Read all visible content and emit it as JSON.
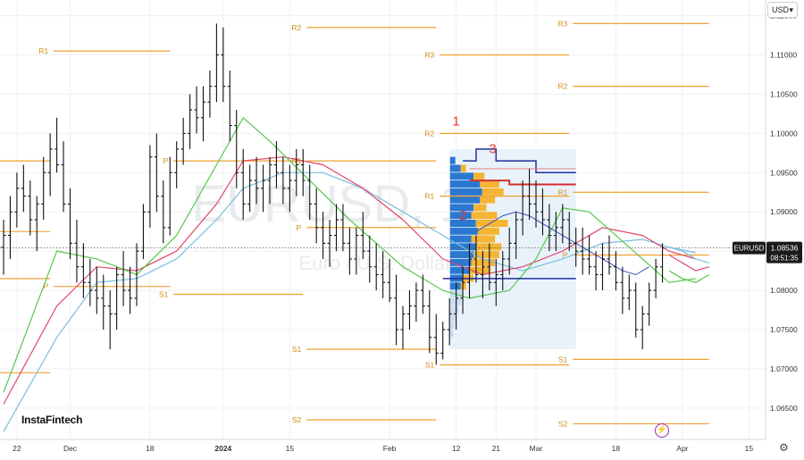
{
  "currency_select": {
    "value": "USD"
  },
  "logo_text": "InstaFintech",
  "watermark": {
    "symbol": "EURUSD, 1D",
    "description": "Euro / U.S. Dollar"
  },
  "price_badge": {
    "symbol": "EURUSD",
    "price": "1.08536",
    "countdown": "08:51:35"
  },
  "colors": {
    "pivot": "#f0a030",
    "candle": "#111111",
    "ma_green": "#55c84a",
    "ma_red": "#e2476a",
    "ma_blue": "#7bbde0",
    "volume_profile_bg": "#e9f2fb",
    "vp_blue": "#2a78d0",
    "vp_orange": "#f5b432",
    "annotation_red": "#e53935",
    "navy_line": "#1f2f9e"
  },
  "chart_data": {
    "type": "ohlc",
    "x_tick_labels": [
      "22",
      "Dec",
      "18",
      "2024",
      "15",
      "Feb",
      "12",
      "21",
      "Mar",
      "18",
      "Apr",
      "15"
    ],
    "y_ticks": [
      1.065,
      1.07,
      1.075,
      1.08,
      1.085,
      1.09,
      1.095,
      1.1,
      1.105,
      1.11,
      1.115
    ],
    "y_tick_labels": [
      "1.06500",
      "1.07000",
      "1.07500",
      "1.08000",
      "1.08500",
      "1.09000",
      "1.09500",
      "1.10000",
      "1.10500",
      "1.11000",
      "1.11500"
    ],
    "ylim": [
      1.061,
      1.117
    ],
    "bars_per_x_tick": [
      2,
      10,
      22,
      33,
      43,
      58,
      68,
      74,
      80,
      92,
      102,
      112
    ],
    "total_bars": 106,
    "ohlc": [
      [
        1.0855,
        1.089,
        1.082,
        1.087
      ],
      [
        1.087,
        1.092,
        1.084,
        1.09
      ],
      [
        1.09,
        1.095,
        1.088,
        1.093
      ],
      [
        1.093,
        1.096,
        1.09,
        1.092
      ],
      [
        1.092,
        1.094,
        1.087,
        1.089
      ],
      [
        1.089,
        1.092,
        1.085,
        1.091
      ],
      [
        1.091,
        1.097,
        1.089,
        1.095
      ],
      [
        1.095,
        1.1,
        1.092,
        1.098
      ],
      [
        1.098,
        1.102,
        1.095,
        1.096
      ],
      [
        1.096,
        1.099,
        1.09,
        1.091
      ],
      [
        1.091,
        1.093,
        1.084,
        1.086
      ],
      [
        1.086,
        1.089,
        1.081,
        1.083
      ],
      [
        1.083,
        1.086,
        1.079,
        1.081
      ],
      [
        1.081,
        1.084,
        1.078,
        1.08
      ],
      [
        1.08,
        1.083,
        1.077,
        1.079
      ],
      [
        1.079,
        1.082,
        1.075,
        1.078
      ],
      [
        1.078,
        1.08,
        1.0725,
        1.077
      ],
      [
        1.077,
        1.083,
        1.075,
        1.082
      ],
      [
        1.082,
        1.085,
        1.078,
        1.08
      ],
      [
        1.08,
        1.083,
        1.077,
        1.079
      ],
      [
        1.079,
        1.086,
        1.078,
        1.085
      ],
      [
        1.085,
        1.091,
        1.084,
        1.09
      ],
      [
        1.09,
        1.0985,
        1.088,
        1.097
      ],
      [
        1.097,
        1.1,
        1.09,
        1.092
      ],
      [
        1.092,
        1.094,
        1.086,
        1.088
      ],
      [
        1.088,
        1.097,
        1.087,
        1.095
      ],
      [
        1.095,
        1.099,
        1.093,
        1.098
      ],
      [
        1.098,
        1.102,
        1.096,
        1.1
      ],
      [
        1.1,
        1.105,
        1.098,
        1.103
      ],
      [
        1.103,
        1.106,
        1.1,
        1.102
      ],
      [
        1.102,
        1.106,
        1.099,
        1.104
      ],
      [
        1.104,
        1.108,
        1.102,
        1.106
      ],
      [
        1.106,
        1.114,
        1.104,
        1.11
      ],
      [
        1.11,
        1.1135,
        1.104,
        1.106
      ],
      [
        1.106,
        1.108,
        1.099,
        1.101
      ],
      [
        1.101,
        1.103,
        1.093,
        1.095
      ],
      [
        1.095,
        1.098,
        1.089,
        1.091
      ],
      [
        1.091,
        1.096,
        1.09,
        1.094
      ],
      [
        1.094,
        1.097,
        1.091,
        1.093
      ],
      [
        1.093,
        1.096,
        1.09,
        1.094
      ],
      [
        1.094,
        1.097,
        1.091,
        1.096
      ],
      [
        1.096,
        1.099,
        1.093,
        1.095
      ],
      [
        1.095,
        1.097,
        1.091,
        1.093
      ],
      [
        1.093,
        1.096,
        1.09,
        1.094
      ],
      [
        1.094,
        1.098,
        1.092,
        1.096
      ],
      [
        1.096,
        1.098,
        1.092,
        1.094
      ],
      [
        1.094,
        1.096,
        1.089,
        1.091
      ],
      [
        1.091,
        1.093,
        1.086,
        1.088
      ],
      [
        1.088,
        1.09,
        1.084,
        1.086
      ],
      [
        1.086,
        1.089,
        1.083,
        1.087
      ],
      [
        1.087,
        1.091,
        1.085,
        1.089
      ],
      [
        1.089,
        1.091,
        1.085,
        1.086
      ],
      [
        1.086,
        1.088,
        1.082,
        1.084
      ],
      [
        1.084,
        1.088,
        1.082,
        1.087
      ],
      [
        1.087,
        1.09,
        1.084,
        1.085
      ],
      [
        1.085,
        1.087,
        1.081,
        1.083
      ],
      [
        1.083,
        1.086,
        1.08,
        1.082
      ],
      [
        1.082,
        1.085,
        1.079,
        1.081
      ],
      [
        1.081,
        1.084,
        1.0785,
        1.079
      ],
      [
        1.079,
        1.082,
        1.073,
        1.075
      ],
      [
        1.075,
        1.078,
        1.0725,
        1.077
      ],
      [
        1.077,
        1.08,
        1.075,
        1.078
      ],
      [
        1.078,
        1.081,
        1.076,
        1.08
      ],
      [
        1.08,
        1.082,
        1.077,
        1.078
      ],
      [
        1.078,
        1.08,
        1.072,
        1.074
      ],
      [
        1.074,
        1.077,
        1.0705,
        1.072
      ],
      [
        1.072,
        1.076,
        1.0712,
        1.075
      ],
      [
        1.075,
        1.079,
        1.073,
        1.077
      ],
      [
        1.077,
        1.081,
        1.075,
        1.079
      ],
      [
        1.079,
        1.083,
        1.077,
        1.081
      ],
      [
        1.081,
        1.086,
        1.079,
        1.084
      ],
      [
        1.084,
        1.087,
        1.081,
        1.082
      ],
      [
        1.082,
        1.085,
        1.079,
        1.083
      ],
      [
        1.083,
        1.086,
        1.08,
        1.081
      ],
      [
        1.081,
        1.084,
        1.078,
        1.082
      ],
      [
        1.082,
        1.085,
        1.08,
        1.084
      ],
      [
        1.084,
        1.088,
        1.082,
        1.086
      ],
      [
        1.086,
        1.09,
        1.084,
        1.089
      ],
      [
        1.089,
        1.094,
        1.087,
        1.092
      ],
      [
        1.092,
        1.0955,
        1.089,
        1.091
      ],
      [
        1.091,
        1.094,
        1.088,
        1.09
      ],
      [
        1.09,
        1.093,
        1.087,
        1.089
      ],
      [
        1.089,
        1.091,
        1.085,
        1.087
      ],
      [
        1.087,
        1.09,
        1.085,
        1.088
      ],
      [
        1.088,
        1.091,
        1.086,
        1.089
      ],
      [
        1.089,
        1.09,
        1.085,
        1.086
      ],
      [
        1.086,
        1.088,
        1.083,
        1.085
      ],
      [
        1.085,
        1.088,
        1.082,
        1.084
      ],
      [
        1.084,
        1.087,
        1.082,
        1.083
      ],
      [
        1.083,
        1.085,
        1.08,
        1.082
      ],
      [
        1.082,
        1.086,
        1.08,
        1.084
      ],
      [
        1.084,
        1.087,
        1.082,
        1.083
      ],
      [
        1.083,
        1.085,
        1.08,
        1.081
      ],
      [
        1.081,
        1.083,
        1.077,
        1.079
      ],
      [
        1.079,
        1.082,
        1.0775,
        1.08
      ],
      [
        1.08,
        1.081,
        1.074,
        1.075
      ],
      [
        1.075,
        1.078,
        1.0725,
        1.077
      ],
      [
        1.077,
        1.081,
        1.0755,
        1.08
      ],
      [
        1.08,
        1.084,
        1.079,
        1.083
      ],
      [
        1.083,
        1.086,
        1.081,
        1.0854
      ]
    ],
    "ma_green": [
      [
        0,
        1.067
      ],
      [
        8,
        1.085
      ],
      [
        14,
        1.084
      ],
      [
        20,
        1.082
      ],
      [
        26,
        1.087
      ],
      [
        32,
        1.096
      ],
      [
        36,
        1.102
      ],
      [
        40,
        1.099
      ],
      [
        46,
        1.094
      ],
      [
        52,
        1.089
      ],
      [
        60,
        1.083
      ],
      [
        66,
        1.08
      ],
      [
        70,
        1.079
      ],
      [
        76,
        1.08
      ],
      [
        80,
        1.084
      ],
      [
        84,
        1.0905
      ],
      [
        88,
        1.09
      ],
      [
        92,
        1.087
      ],
      [
        96,
        1.084
      ],
      [
        100,
        1.081
      ],
      [
        104,
        1.0815
      ]
    ],
    "ma_red": [
      [
        0,
        1.0655
      ],
      [
        8,
        1.078
      ],
      [
        14,
        1.083
      ],
      [
        20,
        1.0825
      ],
      [
        26,
        1.085
      ],
      [
        32,
        1.091
      ],
      [
        36,
        1.0965
      ],
      [
        42,
        1.097
      ],
      [
        48,
        1.096
      ],
      [
        54,
        1.093
      ],
      [
        60,
        1.089
      ],
      [
        66,
        1.084
      ],
      [
        72,
        1.082
      ],
      [
        78,
        1.083
      ],
      [
        84,
        1.085
      ],
      [
        90,
        1.088
      ],
      [
        96,
        1.087
      ],
      [
        100,
        1.085
      ],
      [
        104,
        1.084
      ]
    ],
    "ma_blue": [
      [
        0,
        1.062
      ],
      [
        8,
        1.074
      ],
      [
        14,
        1.081
      ],
      [
        20,
        1.0815
      ],
      [
        26,
        1.084
      ],
      [
        32,
        1.089
      ],
      [
        36,
        1.093
      ],
      [
        42,
        1.095
      ],
      [
        48,
        1.095
      ],
      [
        54,
        1.093
      ],
      [
        60,
        1.09
      ],
      [
        66,
        1.087
      ],
      [
        72,
        1.084
      ],
      [
        78,
        1.0825
      ],
      [
        84,
        1.084
      ],
      [
        90,
        1.086
      ],
      [
        96,
        1.0865
      ],
      [
        100,
        1.0855
      ],
      [
        104,
        1.0848
      ]
    ],
    "pivot_lines": [
      {
        "label": "R1",
        "y": 1.1105,
        "x0": 7,
        "x1": 25
      },
      {
        "label": "P",
        "y": 1.0805,
        "x0": 7,
        "x1": 25
      },
      {
        "label": "S1",
        "y": 1.0795,
        "x0": 25,
        "x1": 45
      },
      {
        "label": "P",
        "y": 1.0965,
        "x0": 25,
        "x1": 45
      },
      {
        "label": "R2",
        "y": 1.1135,
        "x0": 45,
        "x1": 65
      },
      {
        "label": "R1",
        "y": 1.0965,
        "x0": 45,
        "x1": 65
      },
      {
        "label": "P",
        "y": 1.088,
        "x0": 45,
        "x1": 65
      },
      {
        "label": "S1",
        "y": 1.0725,
        "x0": 45,
        "x1": 65
      },
      {
        "label": "S2",
        "y": 1.0635,
        "x0": 45,
        "x1": 65
      },
      {
        "label": "R3",
        "y": 1.11,
        "x0": 65,
        "x1": 85
      },
      {
        "label": "R2",
        "y": 1.1,
        "x0": 65,
        "x1": 85
      },
      {
        "label": "R1",
        "y": 1.092,
        "x0": 65,
        "x1": 85
      },
      {
        "label": "S1",
        "y": 1.0705,
        "x0": 65,
        "x1": 85
      },
      {
        "label": "R3",
        "y": 1.114,
        "x0": 85,
        "x1": 106
      },
      {
        "label": "R2",
        "y": 1.106,
        "x0": 85,
        "x1": 106
      },
      {
        "label": "R1",
        "y": 1.0925,
        "x0": 85,
        "x1": 106
      },
      {
        "label": "P",
        "y": 1.0845,
        "x0": 85,
        "x1": 106
      },
      {
        "label": "S1",
        "y": 1.0712,
        "x0": 85,
        "x1": 106
      },
      {
        "label": "S2",
        "y": 1.063,
        "x0": 85,
        "x1": 106
      },
      {
        "label": "",
        "y": 1.0875,
        "x0": 0,
        "x1": 7
      },
      {
        "label": "",
        "y": 1.0965,
        "x0": 0,
        "x1": 7
      },
      {
        "label": "",
        "y": 1.0815,
        "x0": 0,
        "x1": 7
      },
      {
        "label": "",
        "y": 1.0695,
        "x0": 0,
        "x1": 7
      }
    ],
    "annotations": [
      {
        "text": "1",
        "x": 68,
        "y": 1.101
      },
      {
        "text": "2",
        "x": 69,
        "y": 1.089
      },
      {
        "text": "3",
        "x": 73.5,
        "y": 1.0975
      }
    ],
    "volume_profile": {
      "x_range": [
        66,
        86
      ],
      "y_range": [
        1.0725,
        1.098
      ],
      "rows": [
        [
          1.0965,
          0.05,
          0
        ],
        [
          1.0955,
          0.1,
          0.05
        ],
        [
          1.0945,
          0.22,
          0.1
        ],
        [
          1.0935,
          0.28,
          0.18
        ],
        [
          1.0925,
          0.3,
          0.2
        ],
        [
          1.0915,
          0.28,
          0.14
        ],
        [
          1.0905,
          0.22,
          0.12
        ],
        [
          1.0895,
          0.2,
          0.24
        ],
        [
          1.0885,
          0.24,
          0.3
        ],
        [
          1.0875,
          0.26,
          0.2
        ],
        [
          1.0865,
          0.2,
          0.22
        ],
        [
          1.0855,
          0.24,
          0.24
        ],
        [
          1.0845,
          0.22,
          0.24
        ],
        [
          1.0835,
          0.2,
          0.22
        ],
        [
          1.0825,
          0.18,
          0.2
        ],
        [
          1.0815,
          0.12,
          0.1
        ],
        [
          1.0805,
          0.1,
          0.05
        ],
        [
          1.0795,
          0.12,
          0
        ],
        [
          1.0785,
          0.1,
          0
        ],
        [
          1.0775,
          0.08,
          0
        ],
        [
          1.0765,
          0.05,
          0
        ],
        [
          1.0755,
          0.04,
          0
        ],
        [
          1.0745,
          0.03,
          0
        ]
      ]
    },
    "navy_steps": [
      [
        69,
        1.0965
      ],
      [
        71,
        1.0965
      ],
      [
        71,
        1.098
      ],
      [
        74,
        1.098
      ],
      [
        74,
        1.0965
      ],
      [
        80,
        1.0965
      ],
      [
        80,
        1.095
      ],
      [
        86,
        1.095
      ]
    ],
    "navy_bottom": [
      [
        66,
        1.0815
      ],
      [
        86,
        1.0815
      ]
    ],
    "red_steps": [
      [
        70,
        1.094
      ],
      [
        76,
        1.094
      ],
      [
        76,
        1.0935
      ],
      [
        86,
        1.0935
      ]
    ],
    "navy_profile": [
      [
        71,
        1.0875
      ],
      [
        73,
        1.0885
      ],
      [
        75,
        1.0895
      ],
      [
        77,
        1.09
      ],
      [
        79,
        1.0895
      ],
      [
        81,
        1.0885
      ],
      [
        83,
        1.0875
      ],
      [
        85,
        1.0865
      ],
      [
        87,
        1.0855
      ],
      [
        89,
        1.0845
      ],
      [
        91,
        1.0835
      ],
      [
        93,
        1.0825
      ],
      [
        95,
        1.082
      ],
      [
        97,
        1.083
      ]
    ],
    "red_thin_lines": [
      [
        [
          70,
          1.0955
        ],
        [
          86,
          1.0955
        ]
      ]
    ],
    "projection_blue": [
      [
        100,
        1.0855
      ],
      [
        102,
        1.085
      ],
      [
        104,
        1.084
      ],
      [
        106,
        1.0835
      ]
    ],
    "projection_red": [
      [
        100,
        1.0845
      ],
      [
        102,
        1.0835
      ],
      [
        104,
        1.0825
      ],
      [
        106,
        1.083
      ]
    ],
    "projection_green": [
      [
        100,
        1.0825
      ],
      [
        102,
        1.0815
      ],
      [
        104,
        1.081
      ],
      [
        106,
        1.082
      ]
    ]
  }
}
